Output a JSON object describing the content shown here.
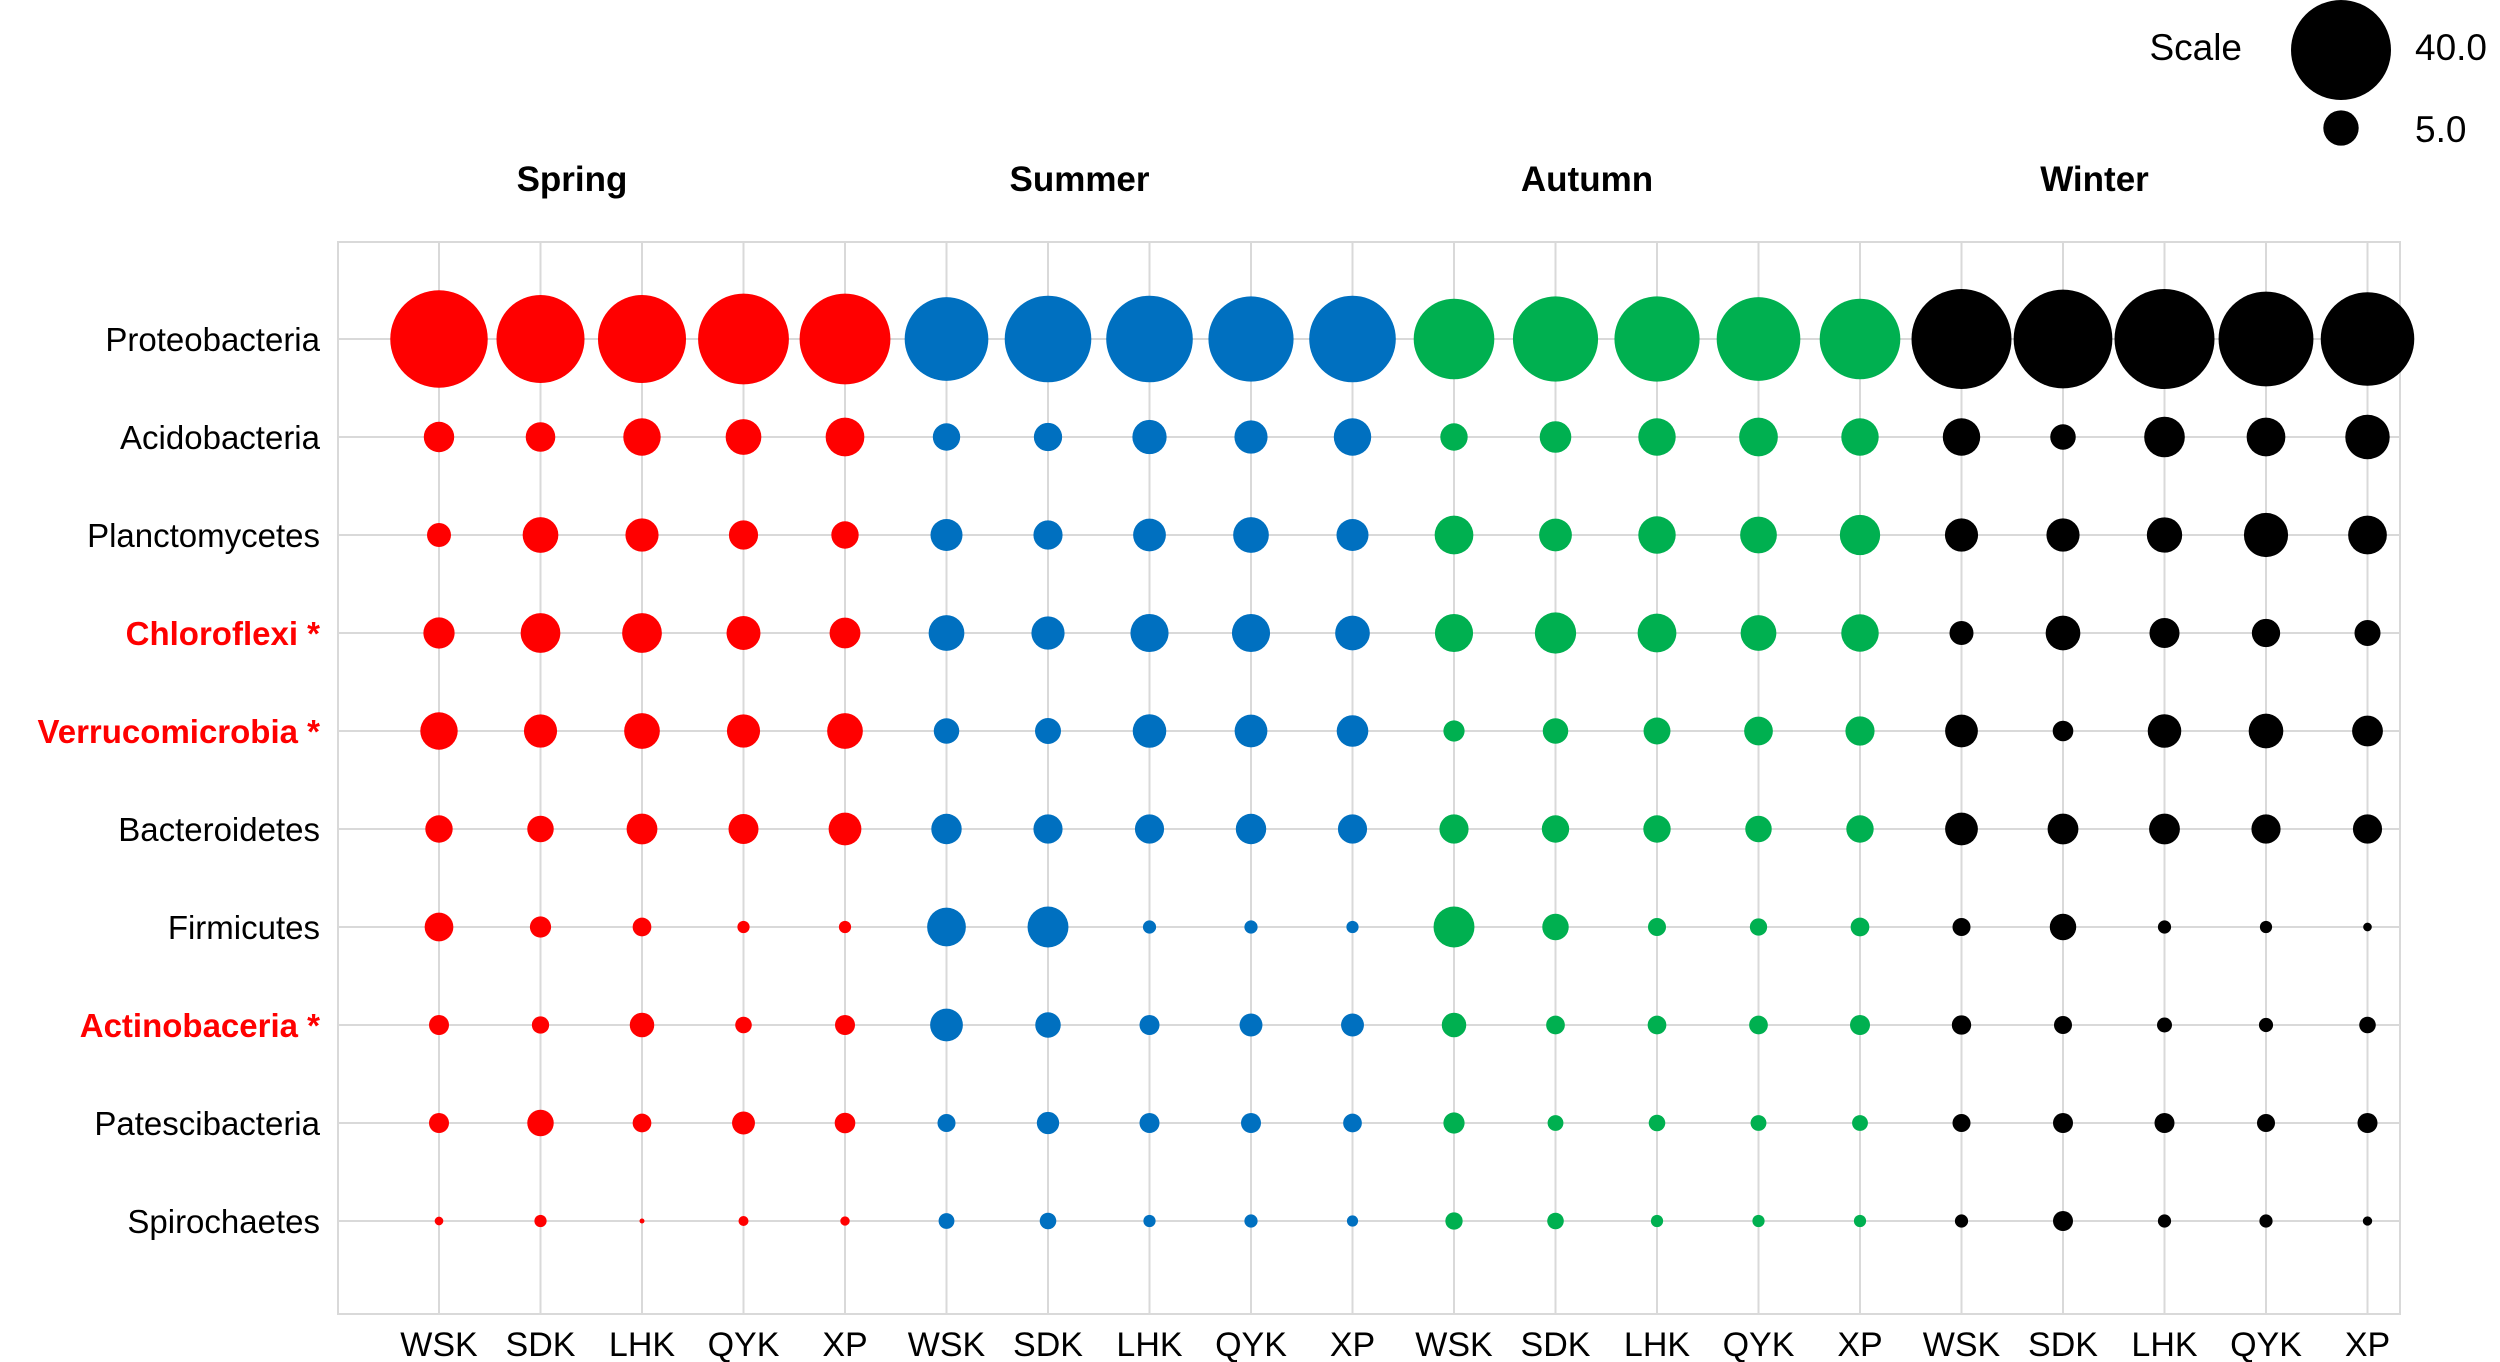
{
  "chart_data": {
    "type": "bubble",
    "legend": {
      "title": "Scale",
      "entries": [
        {
          "label": "40.0",
          "value": 40.0
        },
        {
          "label": "5.0",
          "value": 5.0
        }
      ]
    },
    "groups": [
      {
        "name": "Spring",
        "color": "#ff0000"
      },
      {
        "name": "Summer",
        "color": "#0070c0"
      },
      {
        "name": "Autumn",
        "color": "#00b050"
      },
      {
        "name": "Winter",
        "color": "#000000"
      }
    ],
    "sites": [
      "WSK",
      "SDK",
      "LHK",
      "QYK",
      "XP"
    ],
    "rows": [
      {
        "name": "Spirochaetes",
        "highlight": false,
        "values": [
          0.3,
          0.6,
          0.1,
          0.4,
          0.35,
          1.0,
          1.1,
          0.6,
          0.7,
          0.5,
          1.2,
          1.1,
          0.6,
          0.6,
          0.6,
          0.7,
          1.6,
          0.7,
          0.7,
          0.35
        ]
      },
      {
        "name": "Patescibacteria",
        "highlight": false,
        "values": [
          1.6,
          2.8,
          1.4,
          2.1,
          1.7,
          1.3,
          2.0,
          1.6,
          1.6,
          1.4,
          1.8,
          1.0,
          1.1,
          1.0,
          1.0,
          1.3,
          1.6,
          1.6,
          1.3,
          1.6
        ]
      },
      {
        "name": "Actinobaceria *",
        "highlight": true,
        "values": [
          1.6,
          1.2,
          2.4,
          1.1,
          1.6,
          4.3,
          2.6,
          1.6,
          2.1,
          2.1,
          2.4,
          1.4,
          1.4,
          1.4,
          1.6,
          1.5,
          1.3,
          0.9,
          0.8,
          1.1
        ]
      },
      {
        "name": "Firmicutes",
        "highlight": false,
        "values": [
          3.3,
          1.8,
          1.4,
          0.6,
          0.6,
          6.0,
          6.7,
          0.7,
          0.7,
          0.6,
          6.7,
          2.8,
          1.3,
          1.2,
          1.4,
          1.3,
          2.8,
          0.7,
          0.6,
          0.3
        ]
      },
      {
        "name": "Bacteroidetes",
        "highlight": false,
        "values": [
          3.0,
          2.8,
          3.8,
          3.6,
          4.3,
          3.7,
          3.4,
          3.4,
          3.7,
          3.4,
          3.4,
          3.0,
          3.0,
          2.8,
          3.0,
          4.3,
          3.8,
          3.8,
          3.4,
          3.4
        ]
      },
      {
        "name": "Verrucomicrobia *",
        "highlight": true,
        "values": [
          5.6,
          4.4,
          5.1,
          4.4,
          5.1,
          2.6,
          2.7,
          4.5,
          4.3,
          4.0,
          1.8,
          2.6,
          2.9,
          3.3,
          3.4,
          4.3,
          1.7,
          4.5,
          4.8,
          3.8
        ]
      },
      {
        "name": "Chloroflexi *",
        "highlight": true,
        "values": [
          3.9,
          6.3,
          6.3,
          4.6,
          3.8,
          5.1,
          4.4,
          5.8,
          5.8,
          4.8,
          5.8,
          6.8,
          6.0,
          5.1,
          5.6,
          2.3,
          4.8,
          3.6,
          3.2,
          2.7
        ]
      },
      {
        "name": "Planctomycetes",
        "highlight": false,
        "values": [
          2.3,
          5.1,
          4.4,
          3.4,
          3.0,
          4.1,
          3.4,
          4.3,
          5.1,
          4.1,
          6.0,
          4.3,
          5.6,
          5.4,
          6.5,
          4.4,
          4.4,
          5.0,
          7.8,
          6.0
        ]
      },
      {
        "name": "Acidobacteria",
        "highlight": false,
        "values": [
          3.7,
          3.5,
          5.6,
          5.1,
          6.0,
          3.0,
          3.2,
          4.7,
          4.4,
          5.6,
          3.0,
          4.0,
          5.6,
          6.0,
          5.6,
          5.6,
          2.6,
          6.6,
          6.0,
          7.9
        ]
      },
      {
        "name": "Proteobacteria",
        "highlight": false,
        "values": [
          38,
          31,
          31,
          33,
          33,
          28,
          30,
          30,
          29,
          30,
          26,
          29,
          29,
          28,
          26,
          40,
          39,
          40,
          36,
          35
        ]
      }
    ]
  }
}
